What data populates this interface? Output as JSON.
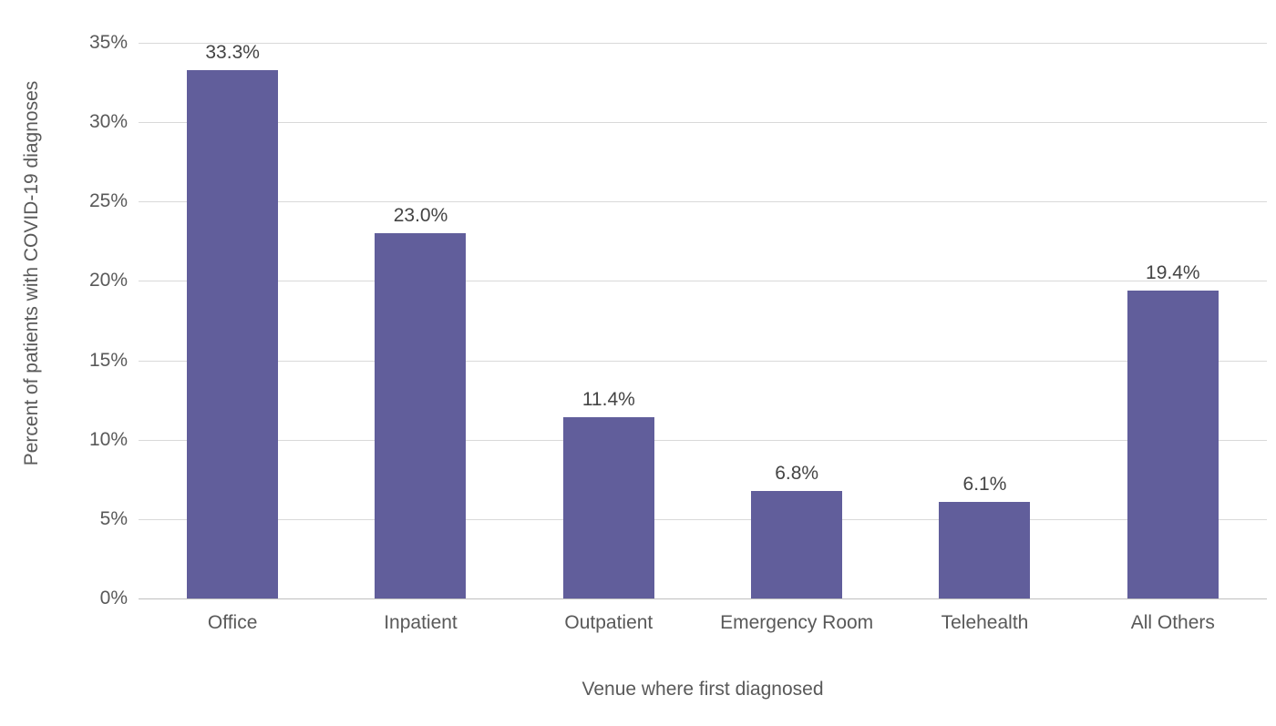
{
  "chart_data": {
    "type": "bar",
    "title": "",
    "categories": [
      "Office",
      "Inpatient",
      "Outpatient",
      "Emergency Room",
      "Telehealth",
      "All Others"
    ],
    "values": [
      33.3,
      23.0,
      11.4,
      6.8,
      6.1,
      19.4
    ],
    "value_labels": [
      "33.3%",
      "23.0%",
      "11.4%",
      "6.8%",
      "6.1%",
      "19.4%"
    ],
    "xlabel": "Venue where first diagnosed",
    "ylabel": "Percent of patients with COVID-19 diagnoses",
    "ylim": [
      0,
      35
    ],
    "y_ticks": [
      {
        "value": 0,
        "label": "0%"
      },
      {
        "value": 5,
        "label": "5%"
      },
      {
        "value": 10,
        "label": "10%"
      },
      {
        "value": 15,
        "label": "15%"
      },
      {
        "value": 20,
        "label": "20%"
      },
      {
        "value": 25,
        "label": "25%"
      },
      {
        "value": 30,
        "label": "30%"
      },
      {
        "value": 35,
        "label": "35%"
      }
    ],
    "grid": true,
    "legend": "none",
    "bar_color": "#615E9B",
    "gridline_color": "#d9d9d9",
    "axis_line_color": "#bfbfbf",
    "text_color": "#595959"
  }
}
